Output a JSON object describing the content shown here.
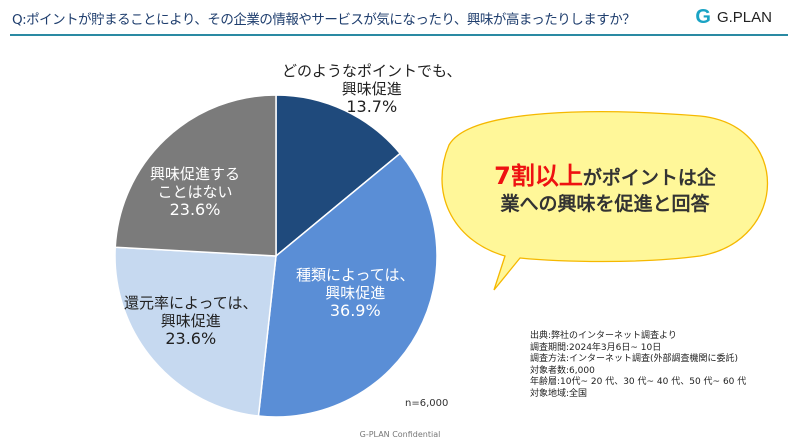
{
  "header": {
    "title": "Q:ポイントが貯まることにより、その企業の情報やサービスが気になったり、興味が高まったりしますか？",
    "logo_text": "G.PLAN"
  },
  "chart_data": {
    "type": "pie",
    "title": "Q:ポイントが貯まることにより、その企業の情報やサービスが気になったり、興味が高まったりしますか？",
    "start": "top",
    "direction": "clockwise",
    "slices": [
      {
        "label_lines": [
          "どのようなポイントでも、",
          "興味促進"
        ],
        "value": 13.7,
        "pct_label": "13.7%",
        "color": "#1f4a7c"
      },
      {
        "label_lines": [
          "種類によっては、",
          "興味促進"
        ],
        "value": 36.9,
        "pct_label": "36.9%",
        "color": "#5a8ed6"
      },
      {
        "label_lines": [
          "還元率によっては、",
          "興味促進"
        ],
        "value": 23.6,
        "pct_label": "23.6%",
        "color": "#c6d9f0"
      },
      {
        "label_lines": [
          "興味促進する",
          "ことはない"
        ],
        "value": 23.6,
        "pct_label": "23.6%",
        "color": "#7b7b7b"
      }
    ],
    "n_label": "n=6,000"
  },
  "callout": {
    "highlight": "7割以上",
    "rest_line1": "がポイントは企",
    "line2": "業への興味を促進と回答",
    "highlight_color": "#ee1111",
    "fill": "#fff799",
    "border": "#f5b800"
  },
  "notes": [
    "出典:弊社のインターネット調査より",
    "調査期間:2024年3月6日~ 10日",
    "調査方法:インターネット調査(外部調査機関に委託)",
    "対象者数:6,000",
    "年齢層:10代~ 20 代、30 代~ 40 代、50 代~ 60 代",
    "対象地域:全国"
  ],
  "footer": "G-PLAN Confidential"
}
